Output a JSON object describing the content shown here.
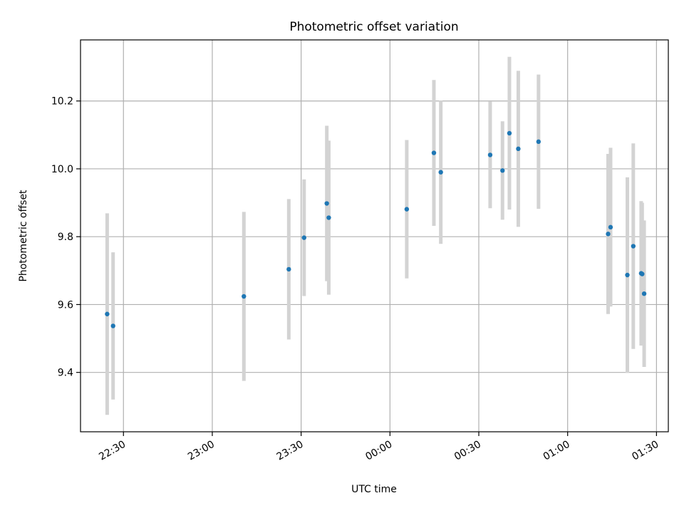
{
  "chart_data": {
    "type": "scatter",
    "title": "Photometric offset variation",
    "xlabel": "UTC time",
    "ylabel": "Photometric offset",
    "x_ticks": [
      "22:30",
      "23:00",
      "23:30",
      "00:00",
      "00:30",
      "01:00",
      "01:30"
    ],
    "y_ticks": [
      "9.4",
      "9.6",
      "9.8",
      "10.0",
      "10.2"
    ],
    "xlim": [
      "22:15:30",
      "01:34"
    ],
    "ylim": [
      9.225,
      10.38
    ],
    "grid": true,
    "marker_color": "#1f77b4",
    "errorbar_color": "#d3d3d3",
    "points": [
      {
        "t": "22:24:30",
        "y": 9.572,
        "err": 0.297
      },
      {
        "t": "22:26:30",
        "y": 9.537,
        "err": 0.217
      },
      {
        "t": "23:10:40",
        "y": 9.624,
        "err": 0.249
      },
      {
        "t": "23:25:50",
        "y": 9.704,
        "err": 0.207
      },
      {
        "t": "23:31:00",
        "y": 9.797,
        "err": 0.172
      },
      {
        "t": "23:38:40",
        "y": 9.898,
        "err": 0.229
      },
      {
        "t": "23:39:20",
        "y": 9.856,
        "err": 0.227
      },
      {
        "t": "00:05:40",
        "y": 9.881,
        "err": 0.204
      },
      {
        "t": "00:14:50",
        "y": 10.047,
        "err": 0.215
      },
      {
        "t": "00:17:10",
        "y": 9.99,
        "err": 0.211
      },
      {
        "t": "00:33:50",
        "y": 10.041,
        "err": 0.157
      },
      {
        "t": "00:38:00",
        "y": 9.995,
        "err": 0.145
      },
      {
        "t": "00:40:20",
        "y": 10.105,
        "err": 0.225
      },
      {
        "t": "00:43:20",
        "y": 10.059,
        "err": 0.23
      },
      {
        "t": "00:50:10",
        "y": 10.08,
        "err": 0.198
      },
      {
        "t": "01:13:40",
        "y": 9.808,
        "err": 0.236
      },
      {
        "t": "01:14:30",
        "y": 9.828,
        "err": 0.234
      },
      {
        "t": "01:20:10",
        "y": 9.687,
        "err": 0.288
      },
      {
        "t": "01:22:10",
        "y": 9.772,
        "err": 0.303
      },
      {
        "t": "01:24:50",
        "y": 9.692,
        "err": 0.213
      },
      {
        "t": "01:25:10",
        "y": 9.69,
        "err": 0.21
      },
      {
        "t": "01:25:50",
        "y": 9.632,
        "err": 0.216
      }
    ]
  }
}
